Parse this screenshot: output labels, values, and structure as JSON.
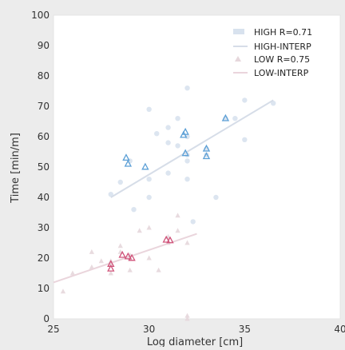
{
  "chart_data": {
    "type": "scatter",
    "xlabel": "Log diameter [cm]",
    "ylabel": "Time [min/m]",
    "xlim": [
      25,
      40
    ],
    "ylim": [
      0,
      100
    ],
    "xticks": [
      "25",
      "30",
      "35",
      "40"
    ],
    "yticks": [
      "0",
      "10",
      "20",
      "30",
      "40",
      "50",
      "60",
      "70",
      "80",
      "90",
      "100"
    ],
    "grid": false,
    "legend_position": "top-right",
    "colors": {
      "high": "#d8e2ee",
      "high_line": "#d6dde8",
      "low": "#e6d7dc",
      "low_line": "#ead5dc",
      "high_highlight": "#5b9fd6",
      "low_highlight": "#d0537a",
      "background": "#ffffff"
    },
    "series": [
      {
        "name": "HIGH R=0.71",
        "kind": "points",
        "marker": "circle",
        "points": [
          [
            28,
            41
          ],
          [
            28.5,
            45
          ],
          [
            29,
            52
          ],
          [
            29.2,
            36
          ],
          [
            30,
            46
          ],
          [
            30,
            69
          ],
          [
            30,
            40
          ],
          [
            30.4,
            61
          ],
          [
            31,
            63
          ],
          [
            31,
            48
          ],
          [
            31.5,
            57
          ],
          [
            31.5,
            66
          ],
          [
            32,
            60
          ],
          [
            32,
            54
          ],
          [
            32,
            46
          ],
          [
            32,
            76
          ],
          [
            32.3,
            32
          ],
          [
            33,
            56
          ],
          [
            33,
            54
          ],
          [
            33.5,
            40
          ],
          [
            34,
            66
          ],
          [
            34.5,
            66
          ],
          [
            35,
            72
          ],
          [
            35,
            59
          ],
          [
            36.5,
            71
          ],
          [
            32,
            52
          ],
          [
            31,
            58
          ]
        ]
      },
      {
        "name": "HIGH-INTERP",
        "kind": "line",
        "points": [
          [
            28,
            40
          ],
          [
            36.5,
            72
          ]
        ]
      },
      {
        "name": "LOW R=0.75",
        "kind": "points",
        "marker": "triangle",
        "points": [
          [
            25.5,
            9
          ],
          [
            26,
            15
          ],
          [
            27,
            17
          ],
          [
            27,
            22
          ],
          [
            27.5,
            19
          ],
          [
            28,
            15
          ],
          [
            28,
            18
          ],
          [
            28.5,
            22
          ],
          [
            28.5,
            24
          ],
          [
            29,
            16
          ],
          [
            29,
            20
          ],
          [
            29.5,
            29
          ],
          [
            30,
            20
          ],
          [
            30,
            30
          ],
          [
            30.5,
            16
          ],
          [
            31,
            25
          ],
          [
            31,
            27
          ],
          [
            31.5,
            34
          ],
          [
            31.5,
            29
          ],
          [
            32,
            25
          ],
          [
            32,
            1
          ],
          [
            32,
            0
          ],
          [
            29,
            21
          ],
          [
            28,
            19
          ]
        ]
      },
      {
        "name": "LOW-INTERP",
        "kind": "line",
        "points": [
          [
            25,
            12
          ],
          [
            32.5,
            28
          ]
        ]
      }
    ],
    "highlighted_points": {
      "high": [
        [
          28.8,
          53
        ],
        [
          28.9,
          51
        ],
        [
          29.8,
          50
        ],
        [
          31.9,
          61.5
        ],
        [
          31.8,
          60.5
        ],
        [
          31.9,
          54.5
        ],
        [
          33,
          56
        ],
        [
          33,
          53.5
        ],
        [
          34,
          66
        ]
      ],
      "low": [
        [
          28,
          18
        ],
        [
          28,
          16.5
        ],
        [
          28.6,
          21
        ],
        [
          28.9,
          20.5
        ],
        [
          29.1,
          20
        ],
        [
          30.9,
          26
        ],
        [
          31.1,
          25.8
        ]
      ]
    }
  }
}
